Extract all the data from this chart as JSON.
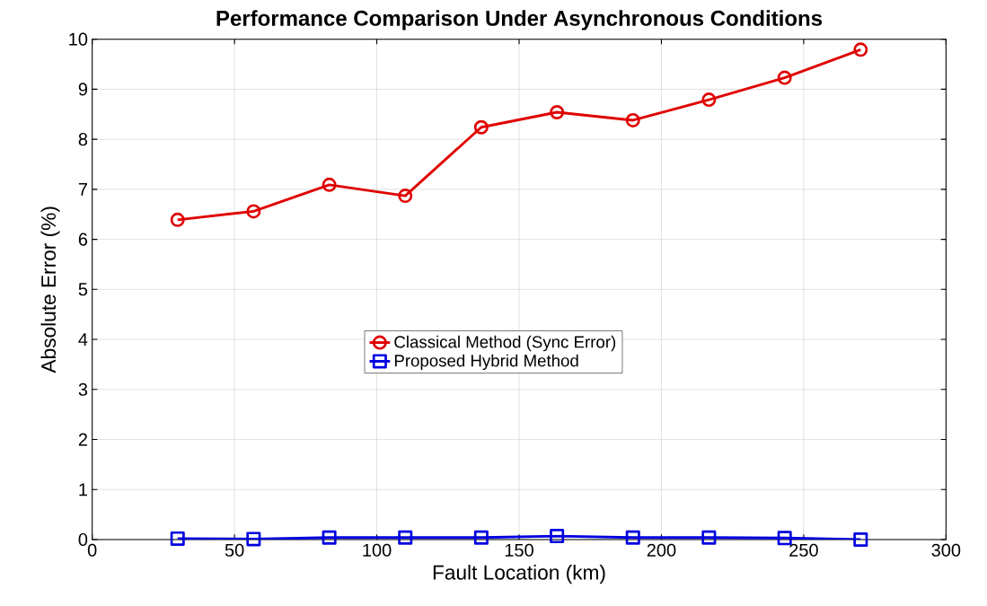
{
  "chart_data": {
    "type": "line",
    "title": "Performance Comparison Under Asynchronous Conditions",
    "xlabel": "Fault Location (km)",
    "ylabel": "Absolute Error (%)",
    "x": [
      30,
      56.7,
      83.3,
      110,
      136.7,
      163.3,
      190,
      216.7,
      243.3,
      270
    ],
    "series": [
      {
        "name": "Classical Method (Sync Error)",
        "color": "#e00000",
        "marker": "circle",
        "values": [
          6.39,
          6.56,
          7.09,
          6.87,
          8.24,
          8.54,
          8.38,
          8.79,
          9.23,
          9.79
        ]
      },
      {
        "name": "Proposed Hybrid Method",
        "color": "#0000e0",
        "marker": "square",
        "values": [
          0.02,
          0.01,
          0.04,
          0.04,
          0.04,
          0.07,
          0.04,
          0.04,
          0.03,
          0.0
        ]
      }
    ],
    "xlim": [
      0,
      300
    ],
    "xticks": [
      0,
      50,
      100,
      150,
      200,
      250,
      300
    ],
    "ylim": [
      0,
      10
    ],
    "yticks": [
      0,
      1,
      2,
      3,
      4,
      5,
      6,
      7,
      8,
      9,
      10
    ],
    "grid": true,
    "legend": "center",
    "line_style": "solid"
  }
}
